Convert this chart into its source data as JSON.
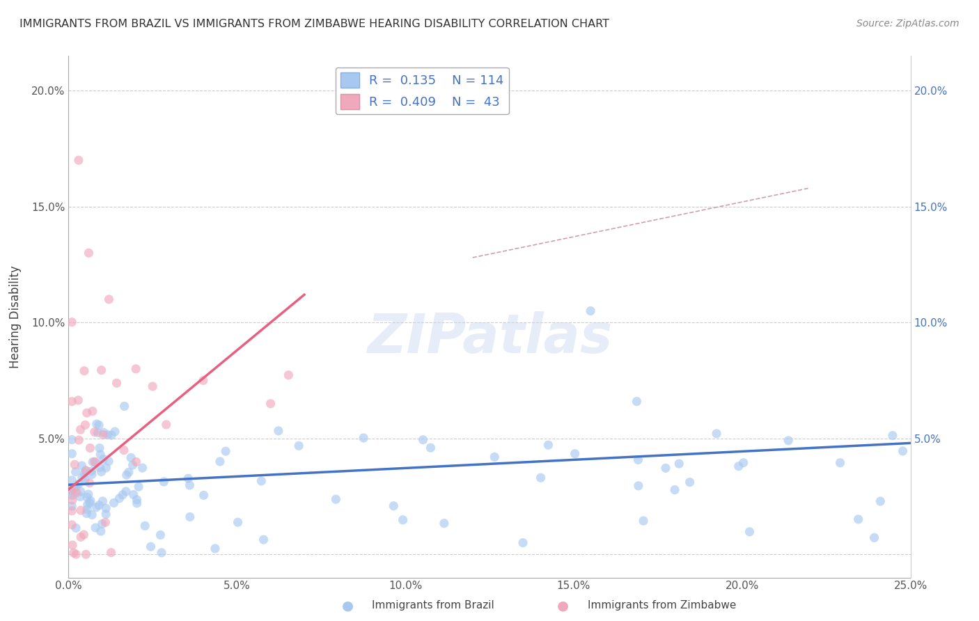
{
  "title": "IMMIGRANTS FROM BRAZIL VS IMMIGRANTS FROM ZIMBABWE HEARING DISABILITY CORRELATION CHART",
  "source": "Source: ZipAtlas.com",
  "ylabel": "Hearing Disability",
  "xlim": [
    0.0,
    0.25
  ],
  "ylim": [
    -0.01,
    0.215
  ],
  "xticks": [
    0.0,
    0.05,
    0.1,
    0.15,
    0.2,
    0.25
  ],
  "yticks": [
    0.0,
    0.05,
    0.1,
    0.15,
    0.2
  ],
  "xtick_labels": [
    "0.0%",
    "5.0%",
    "10.0%",
    "15.0%",
    "20.0%",
    "25.0%"
  ],
  "ytick_labels": [
    "",
    "5.0%",
    "10.0%",
    "15.0%",
    "20.0%"
  ],
  "right_ytick_labels": [
    "",
    "5.0%",
    "10.0%",
    "15.0%",
    "20.0%"
  ],
  "brazil_color": "#a8c8f0",
  "zimbabwe_color": "#f0a8bc",
  "brazil_R": 0.135,
  "brazil_N": 114,
  "zimbabwe_R": 0.409,
  "zimbabwe_N": 43,
  "brazil_trend": [
    0.0,
    0.25,
    0.03,
    0.048
  ],
  "zimbabwe_trend": [
    0.0,
    0.07,
    0.028,
    0.112
  ],
  "dashed_trend": [
    0.12,
    0.22,
    0.128,
    0.158
  ],
  "watermark": "ZIPatlas",
  "legend_label_brazil": "Immigrants from Brazil",
  "legend_label_zimbabwe": "Immigrants from Zimbabwe"
}
